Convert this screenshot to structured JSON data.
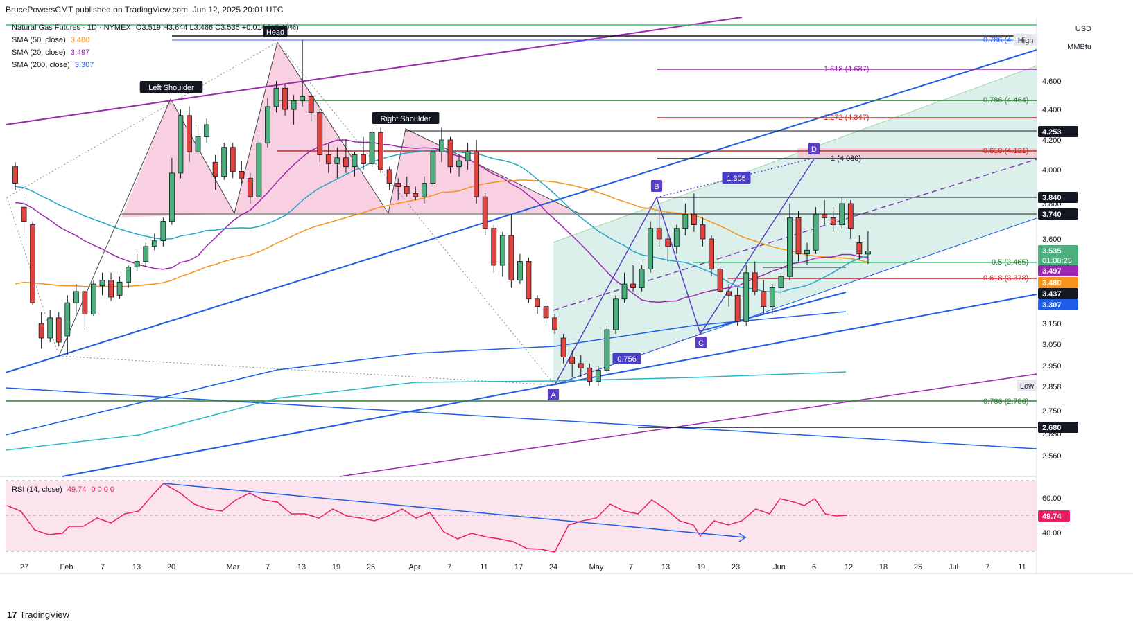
{
  "publisher": "BrucePowersCMT published on TradingView.com, Jun 12, 2025 20:01 UTC",
  "footer_brand": "TradingView",
  "currency": "USD",
  "unit": "MMBtu",
  "legend": {
    "symbol": "Natural Gas Futures · 1D · NYMEX",
    "ohlc": "O3.519  H3.644  L3.466  C3.535  +0.014 (+0.40%)",
    "sma50_label": "SMA (50, close)",
    "sma50_value": "3.480",
    "sma20_label": "SMA (20, close)",
    "sma20_value": "3.497",
    "sma200_label": "SMA (200, close)",
    "sma200_value": "3.307",
    "rsi_label": "RSI (14, close)",
    "rsi_value": "49.74",
    "rsi_extra": "0 0 0 0"
  },
  "colors": {
    "up": "#4caf7d",
    "down": "#e0443e",
    "sma50": "#f7931a",
    "sma20": "#9c27b0",
    "sma200": "#26b8c7",
    "sma_teal": "#26a6c7",
    "blue_channel": "#1e5ee6",
    "purple_channel": "#9c27b0",
    "rsi": "#e91e63",
    "hs_fill": "#f8c8dc",
    "abcd_fill": "#cfeae4"
  },
  "chart_data": {
    "type": "candlestick",
    "title": "Natural Gas Futures · 1D · NYMEX",
    "y_axis_ticks": [
      "4.600",
      "4.400",
      "4.200",
      "4.000",
      "3.800",
      "3.600",
      "3.150",
      "3.050",
      "2.950",
      "2.750",
      "2.650",
      "2.560"
    ],
    "x_axis_ticks": [
      "27",
      "Feb",
      "7",
      "13",
      "20",
      "Mar",
      "7",
      "13",
      "19",
      "25",
      "Apr",
      "7",
      "11",
      "17",
      "24",
      "May",
      "7",
      "13",
      "19",
      "23",
      "Jun",
      "6",
      "12",
      "18",
      "25",
      "Jul",
      "7",
      "11"
    ],
    "price_labels": [
      {
        "value": "4.253",
        "kind": "level"
      },
      {
        "value": "3.840",
        "kind": "level"
      },
      {
        "value": "3.740",
        "kind": "level"
      },
      {
        "value": "3.535",
        "kind": "last",
        "sub": "01:08:25"
      },
      {
        "value": "3.497",
        "kind": "sma20"
      },
      {
        "value": "3.480",
        "kind": "sma50"
      },
      {
        "value": "3.437",
        "kind": "level"
      },
      {
        "value": "3.307",
        "kind": "sma200"
      },
      {
        "value": "2.680",
        "kind": "level"
      },
      {
        "value": "2.858",
        "kind": "low_tag"
      }
    ],
    "high_tag": "High",
    "low_tag": "Low",
    "fib_labels": [
      "0.786 (4.",
      "1.618 (4.687)",
      "0.786 (4.464)",
      "1.272 (4.347)",
      "0.618 (4.121)",
      "1 (4.080)",
      "0.5 (3.465)",
      "0.618 (3.378)",
      "0.786 (2.786)"
    ],
    "annotations": [
      "Head",
      "Left Shoulder",
      "Right Shoulder",
      "A",
      "B",
      "C",
      "D",
      "1.305",
      "0.756"
    ],
    "rsi_ticks": [
      "60.00",
      "40.00"
    ],
    "rsi_last": "49.74",
    "candles": [
      {
        "d": "Jan 23",
        "o": 4.02,
        "h": 4.05,
        "l": 3.88,
        "c": 3.92
      },
      {
        "d": "Jan 24",
        "o": 3.78,
        "h": 3.84,
        "l": 3.62,
        "c": 3.7
      },
      {
        "d": "Jan 27",
        "o": 3.68,
        "h": 3.7,
        "l": 3.25,
        "c": 3.26
      },
      {
        "d": "Jan 28",
        "o": 3.15,
        "h": 3.21,
        "l": 3.03,
        "c": 3.08
      },
      {
        "d": "Jan 29",
        "o": 3.08,
        "h": 3.22,
        "l": 3.06,
        "c": 3.18
      },
      {
        "d": "Jan 30",
        "o": 3.18,
        "h": 3.21,
        "l": 3.04,
        "c": 3.06
      },
      {
        "d": "Jan 31",
        "o": 3.09,
        "h": 3.3,
        "l": 3.0,
        "c": 3.26
      },
      {
        "d": "Feb 3",
        "o": 3.26,
        "h": 3.36,
        "l": 3.2,
        "c": 3.32
      },
      {
        "d": "Feb 4",
        "o": 3.32,
        "h": 3.35,
        "l": 3.12,
        "c": 3.2
      },
      {
        "d": "Feb 5",
        "o": 3.2,
        "h": 3.38,
        "l": 3.19,
        "c": 3.36
      },
      {
        "d": "Feb 6",
        "o": 3.35,
        "h": 3.42,
        "l": 3.3,
        "c": 3.38
      },
      {
        "d": "Feb 7",
        "o": 3.38,
        "h": 3.42,
        "l": 3.27,
        "c": 3.29
      },
      {
        "d": "Feb 10",
        "o": 3.3,
        "h": 3.4,
        "l": 3.28,
        "c": 3.37
      },
      {
        "d": "Feb 11",
        "o": 3.37,
        "h": 3.46,
        "l": 3.34,
        "c": 3.45
      },
      {
        "d": "Feb 12",
        "o": 3.45,
        "h": 3.52,
        "l": 3.43,
        "c": 3.48
      },
      {
        "d": "Feb 13",
        "o": 3.48,
        "h": 3.58,
        "l": 3.45,
        "c": 3.56
      },
      {
        "d": "Feb 14",
        "o": 3.56,
        "h": 3.63,
        "l": 3.54,
        "c": 3.59
      },
      {
        "d": "Feb 18",
        "o": 3.59,
        "h": 3.72,
        "l": 3.56,
        "c": 3.7
      },
      {
        "d": "Feb 19",
        "o": 3.7,
        "h": 4.08,
        "l": 3.68,
        "c": 3.98
      },
      {
        "d": "Feb 20",
        "o": 3.98,
        "h": 4.4,
        "l": 3.95,
        "c": 4.36
      },
      {
        "d": "Feb 21",
        "o": 4.36,
        "h": 4.42,
        "l": 4.05,
        "c": 4.12
      },
      {
        "d": "Feb 24",
        "o": 4.12,
        "h": 4.3,
        "l": 4.1,
        "c": 4.22
      },
      {
        "d": "Feb 25",
        "o": 4.22,
        "h": 4.34,
        "l": 4.18,
        "c": 4.3
      },
      {
        "d": "Feb 26",
        "o": 4.05,
        "h": 4.1,
        "l": 3.88,
        "c": 3.96
      },
      {
        "d": "Feb 27",
        "o": 3.96,
        "h": 4.18,
        "l": 3.94,
        "c": 4.15
      },
      {
        "d": "Feb 28",
        "o": 4.15,
        "h": 4.18,
        "l": 3.95,
        "c": 3.99
      },
      {
        "d": "Mar 3",
        "o": 3.99,
        "h": 4.06,
        "l": 3.92,
        "c": 3.95
      },
      {
        "d": "Mar 4",
        "o": 3.95,
        "h": 3.98,
        "l": 3.8,
        "c": 3.84
      },
      {
        "d": "Mar 5",
        "o": 3.84,
        "h": 4.22,
        "l": 3.83,
        "c": 4.18
      },
      {
        "d": "Mar 6",
        "o": 4.18,
        "h": 4.48,
        "l": 4.15,
        "c": 4.42
      },
      {
        "d": "Mar 7",
        "o": 4.42,
        "h": 4.6,
        "l": 4.38,
        "c": 4.55
      },
      {
        "d": "Mar 10",
        "o": 4.55,
        "h": 4.58,
        "l": 4.36,
        "c": 4.4
      },
      {
        "d": "Mar 11",
        "o": 4.4,
        "h": 4.5,
        "l": 4.3,
        "c": 4.46
      },
      {
        "d": "Mar 12",
        "o": 4.46,
        "h": 4.92,
        "l": 4.42,
        "c": 4.49
      },
      {
        "d": "Mar 13",
        "o": 4.49,
        "h": 4.52,
        "l": 4.32,
        "c": 4.38
      },
      {
        "d": "Mar 14",
        "o": 4.38,
        "h": 4.4,
        "l": 4.05,
        "c": 4.1
      },
      {
        "d": "Mar 17",
        "o": 4.1,
        "h": 4.18,
        "l": 3.98,
        "c": 4.04
      },
      {
        "d": "Mar 18",
        "o": 4.04,
        "h": 4.15,
        "l": 3.95,
        "c": 4.08
      },
      {
        "d": "Mar 19",
        "o": 4.08,
        "h": 4.2,
        "l": 3.98,
        "c": 4.02
      },
      {
        "d": "Mar 20",
        "o": 4.02,
        "h": 4.12,
        "l": 3.96,
        "c": 4.1
      },
      {
        "d": "Mar 21",
        "o": 4.1,
        "h": 4.22,
        "l": 4.0,
        "c": 4.04
      },
      {
        "d": "Mar 24",
        "o": 4.04,
        "h": 4.28,
        "l": 4.02,
        "c": 4.25
      },
      {
        "d": "Mar 25",
        "o": 4.25,
        "h": 4.28,
        "l": 3.98,
        "c": 4.0
      },
      {
        "d": "Mar 26",
        "o": 4.0,
        "h": 4.02,
        "l": 3.88,
        "c": 3.92
      },
      {
        "d": "Mar 27",
        "o": 3.92,
        "h": 3.95,
        "l": 3.82,
        "c": 3.9
      },
      {
        "d": "Mar 28",
        "o": 3.9,
        "h": 3.96,
        "l": 3.84,
        "c": 3.86
      },
      {
        "d": "Mar 31",
        "o": 3.86,
        "h": 3.9,
        "l": 3.82,
        "c": 3.84
      },
      {
        "d": "Apr 1",
        "o": 3.84,
        "h": 3.96,
        "l": 3.8,
        "c": 3.92
      },
      {
        "d": "Apr 2",
        "o": 3.92,
        "h": 4.15,
        "l": 3.9,
        "c": 4.12
      },
      {
        "d": "Apr 3",
        "o": 4.12,
        "h": 4.28,
        "l": 4.05,
        "c": 4.2
      },
      {
        "d": "Apr 4",
        "o": 4.2,
        "h": 4.22,
        "l": 3.98,
        "c": 4.02
      },
      {
        "d": "Apr 7",
        "o": 4.02,
        "h": 4.1,
        "l": 3.96,
        "c": 4.06
      },
      {
        "d": "Apr 8",
        "o": 4.06,
        "h": 4.18,
        "l": 4.0,
        "c": 4.12
      },
      {
        "d": "Apr 9",
        "o": 4.12,
        "h": 4.2,
        "l": 3.8,
        "c": 3.84
      },
      {
        "d": "Apr 10",
        "o": 3.84,
        "h": 3.86,
        "l": 3.62,
        "c": 3.66
      },
      {
        "d": "Apr 11",
        "o": 3.66,
        "h": 3.68,
        "l": 3.42,
        "c": 3.46
      },
      {
        "d": "Apr 14",
        "o": 3.46,
        "h": 3.64,
        "l": 3.4,
        "c": 3.62
      },
      {
        "d": "Apr 15",
        "o": 3.62,
        "h": 3.74,
        "l": 3.34,
        "c": 3.38
      },
      {
        "d": "Apr 16",
        "o": 3.38,
        "h": 3.52,
        "l": 3.36,
        "c": 3.48
      },
      {
        "d": "Apr 17",
        "o": 3.48,
        "h": 3.5,
        "l": 3.26,
        "c": 3.28
      },
      {
        "d": "Apr 21",
        "o": 3.28,
        "h": 3.3,
        "l": 3.2,
        "c": 3.24
      },
      {
        "d": "Apr 22",
        "o": 3.24,
        "h": 3.26,
        "l": 3.14,
        "c": 3.18
      },
      {
        "d": "Apr 23",
        "o": 3.18,
        "h": 3.2,
        "l": 3.1,
        "c": 3.12
      },
      {
        "d": "Apr 24",
        "o": 3.08,
        "h": 3.1,
        "l": 2.96,
        "c": 2.99
      },
      {
        "d": "Apr 25",
        "o": 2.99,
        "h": 3.02,
        "l": 2.9,
        "c": 2.96
      },
      {
        "d": "Apr 28",
        "o": 2.96,
        "h": 3.0,
        "l": 2.9,
        "c": 2.94
      },
      {
        "d": "Apr 29",
        "o": 2.94,
        "h": 2.96,
        "l": 2.86,
        "c": 2.88
      },
      {
        "d": "Apr 30",
        "o": 2.88,
        "h": 2.95,
        "l": 2.86,
        "c": 2.93
      },
      {
        "d": "May 1",
        "o": 2.93,
        "h": 3.14,
        "l": 2.92,
        "c": 3.12
      },
      {
        "d": "May 2",
        "o": 3.12,
        "h": 3.3,
        "l": 3.1,
        "c": 3.28
      },
      {
        "d": "May 5",
        "o": 3.28,
        "h": 3.42,
        "l": 3.26,
        "c": 3.36
      },
      {
        "d": "May 6",
        "o": 3.36,
        "h": 3.46,
        "l": 3.32,
        "c": 3.34
      },
      {
        "d": "May 7",
        "o": 3.34,
        "h": 3.46,
        "l": 3.32,
        "c": 3.44
      },
      {
        "d": "May 8",
        "o": 3.44,
        "h": 3.7,
        "l": 3.42,
        "c": 3.66
      },
      {
        "d": "May 9",
        "o": 3.66,
        "h": 3.76,
        "l": 3.56,
        "c": 3.6
      },
      {
        "d": "May 12",
        "o": 3.6,
        "h": 3.66,
        "l": 3.48,
        "c": 3.56
      },
      {
        "d": "May 13",
        "o": 3.56,
        "h": 3.68,
        "l": 3.52,
        "c": 3.66
      },
      {
        "d": "May 14",
        "o": 3.66,
        "h": 3.8,
        "l": 3.62,
        "c": 3.74
      },
      {
        "d": "May 15",
        "o": 3.74,
        "h": 3.86,
        "l": 3.64,
        "c": 3.68
      },
      {
        "d": "May 16",
        "o": 3.68,
        "h": 3.72,
        "l": 3.56,
        "c": 3.6
      },
      {
        "d": "May 19",
        "o": 3.6,
        "h": 3.62,
        "l": 3.4,
        "c": 3.44
      },
      {
        "d": "May 20",
        "o": 3.44,
        "h": 3.48,
        "l": 3.3,
        "c": 3.32
      },
      {
        "d": "May 21",
        "o": 3.32,
        "h": 3.36,
        "l": 3.24,
        "c": 3.3
      },
      {
        "d": "May 22",
        "o": 3.3,
        "h": 3.34,
        "l": 3.14,
        "c": 3.16
      },
      {
        "d": "May 23",
        "o": 3.16,
        "h": 3.46,
        "l": 3.14,
        "c": 3.42
      },
      {
        "d": "May 27",
        "o": 3.42,
        "h": 3.48,
        "l": 3.3,
        "c": 3.32
      },
      {
        "d": "May 28",
        "o": 3.32,
        "h": 3.38,
        "l": 3.2,
        "c": 3.24
      },
      {
        "d": "May 29",
        "o": 3.24,
        "h": 3.36,
        "l": 3.2,
        "c": 3.34
      },
      {
        "d": "May 30",
        "o": 3.34,
        "h": 3.42,
        "l": 3.3,
        "c": 3.4
      },
      {
        "d": "Jun 2",
        "o": 3.4,
        "h": 3.8,
        "l": 3.38,
        "c": 3.72
      },
      {
        "d": "Jun 3",
        "o": 3.72,
        "h": 3.76,
        "l": 3.48,
        "c": 3.52
      },
      {
        "d": "Jun 4",
        "o": 3.52,
        "h": 3.58,
        "l": 3.46,
        "c": 3.54
      },
      {
        "d": "Jun 5",
        "o": 3.54,
        "h": 3.78,
        "l": 3.52,
        "c": 3.74
      },
      {
        "d": "Jun 6",
        "o": 3.74,
        "h": 3.82,
        "l": 3.68,
        "c": 3.72
      },
      {
        "d": "Jun 9",
        "o": 3.72,
        "h": 3.78,
        "l": 3.64,
        "c": 3.68
      },
      {
        "d": "Jun 10",
        "o": 3.68,
        "h": 3.84,
        "l": 3.66,
        "c": 3.8
      },
      {
        "d": "Jun 11",
        "o": 3.8,
        "h": 3.82,
        "l": 3.6,
        "c": 3.66
      },
      {
        "d": "Jun 12",
        "o": 3.58,
        "h": 3.62,
        "l": 3.49,
        "c": 3.52
      },
      {
        "d": "Jun 13",
        "o": 3.519,
        "h": 3.644,
        "l": 3.466,
        "c": 3.535
      }
    ]
  }
}
